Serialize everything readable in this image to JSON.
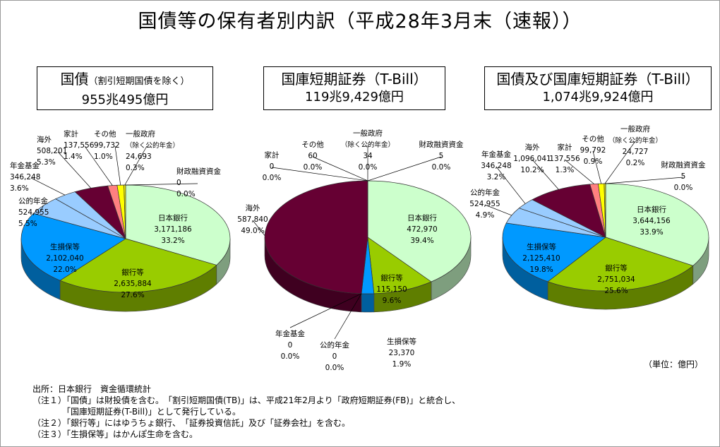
{
  "title": "国債等の保有者別内訳（平成28年3月末（速報））",
  "unit_label": "（単位：億円）",
  "source": "出所：日本銀行　資金循環統計",
  "notes": [
    "（注１）「国債」は財投債を含む。　「割引短期国債(TB)」は、平成21年2月より「政府短期証券(FB)」と統合し、",
    "　　　　「国庫短期証券(T-Bill)」として発行している。",
    "（注２）「銀行等」にはゆうちょ銀行、　「証券投資信託」及び「証券会社」を含む。",
    "（注３）「生損保等」はかんぽ生命を含む。"
  ],
  "boxes": [
    {
      "title": "国債",
      "subtitle": "（割引短期国債を除く）",
      "total": "955兆495億円"
    },
    {
      "title": "国庫短期証券（T-Bill）",
      "subtitle": "",
      "total": "119兆9,429億円"
    },
    {
      "title": "国債及び国庫短期証券（T-Bill）",
      "subtitle": "",
      "total": "1,074兆9,924億円"
    }
  ],
  "colors": {
    "日本銀行": "#ccffcc",
    "銀行等": "#99cc00",
    "生損保等": "#0099ff",
    "公的年金": "#99ccff",
    "年金基金": "#99ccff",
    "海外": "#660033",
    "家計": "#ff8080",
    "その他": "#ffff00",
    "一般政府（除く公的年金）": "#ffff00",
    "財政融資資金": "#ffff00"
  },
  "chart_data": [
    {
      "type": "pie",
      "title": "国債（割引短期国債を除く）",
      "slices": [
        {
          "label": "日本銀行",
          "value": 3171186,
          "pct": "33.2%"
        },
        {
          "label": "銀行等",
          "value": 2635884,
          "pct": "27.6%"
        },
        {
          "label": "生損保等",
          "value": 2102040,
          "pct": "22.0%"
        },
        {
          "label": "公的年金",
          "value": 524955,
          "pct": "5.5%"
        },
        {
          "label": "年金基金",
          "value": 346248,
          "pct": "3.6%"
        },
        {
          "label": "海外",
          "value": 508201,
          "pct": "5.3%"
        },
        {
          "label": "家計",
          "value": 137556,
          "pct": "1.4%"
        },
        {
          "label": "その他",
          "value": 99732,
          "pct": "1.0%"
        },
        {
          "label": "一般政府（除く公的年金）",
          "value": 24693,
          "pct": "0.3%"
        },
        {
          "label": "財政融資資金",
          "value": 0,
          "pct": "0.0%"
        }
      ]
    },
    {
      "type": "pie",
      "title": "国庫短期証券（T-Bill）",
      "slices": [
        {
          "label": "日本銀行",
          "value": 472970,
          "pct": "39.4%"
        },
        {
          "label": "銀行等",
          "value": 115150,
          "pct": "9.6%"
        },
        {
          "label": "生損保等",
          "value": 23370,
          "pct": "1.9%"
        },
        {
          "label": "公的年金",
          "value": 0,
          "pct": "0.0%"
        },
        {
          "label": "年金基金",
          "value": 0,
          "pct": "0.0%"
        },
        {
          "label": "海外",
          "value": 587840,
          "pct": "49.0%"
        },
        {
          "label": "家計",
          "value": 0,
          "pct": "0.0%"
        },
        {
          "label": "その他",
          "value": 60,
          "pct": "0.0%"
        },
        {
          "label": "一般政府（除く公的年金）",
          "value": 34,
          "pct": "0.0%"
        },
        {
          "label": "財政融資資金",
          "value": 5,
          "pct": "0.0%"
        }
      ]
    },
    {
      "type": "pie",
      "title": "国債及び国庫短期証券（T-Bill）",
      "slices": [
        {
          "label": "日本銀行",
          "value": 3644156,
          "pct": "33.9%"
        },
        {
          "label": "銀行等",
          "value": 2751034,
          "pct": "25.6%"
        },
        {
          "label": "生損保等",
          "value": 2125410,
          "pct": "19.8%"
        },
        {
          "label": "公的年金",
          "value": 524955,
          "pct": "4.9%"
        },
        {
          "label": "年金基金",
          "value": 346248,
          "pct": "3.2%"
        },
        {
          "label": "海外",
          "value": 1096041,
          "pct": "10.2%"
        },
        {
          "label": "家計",
          "value": 137556,
          "pct": "1.3%"
        },
        {
          "label": "その他",
          "value": 99792,
          "pct": "0.9%"
        },
        {
          "label": "一般政府（除く公的年金）",
          "value": 24727,
          "pct": "0.2%"
        },
        {
          "label": "財政融資資金",
          "value": 5,
          "pct": "0.0%"
        }
      ]
    }
  ]
}
